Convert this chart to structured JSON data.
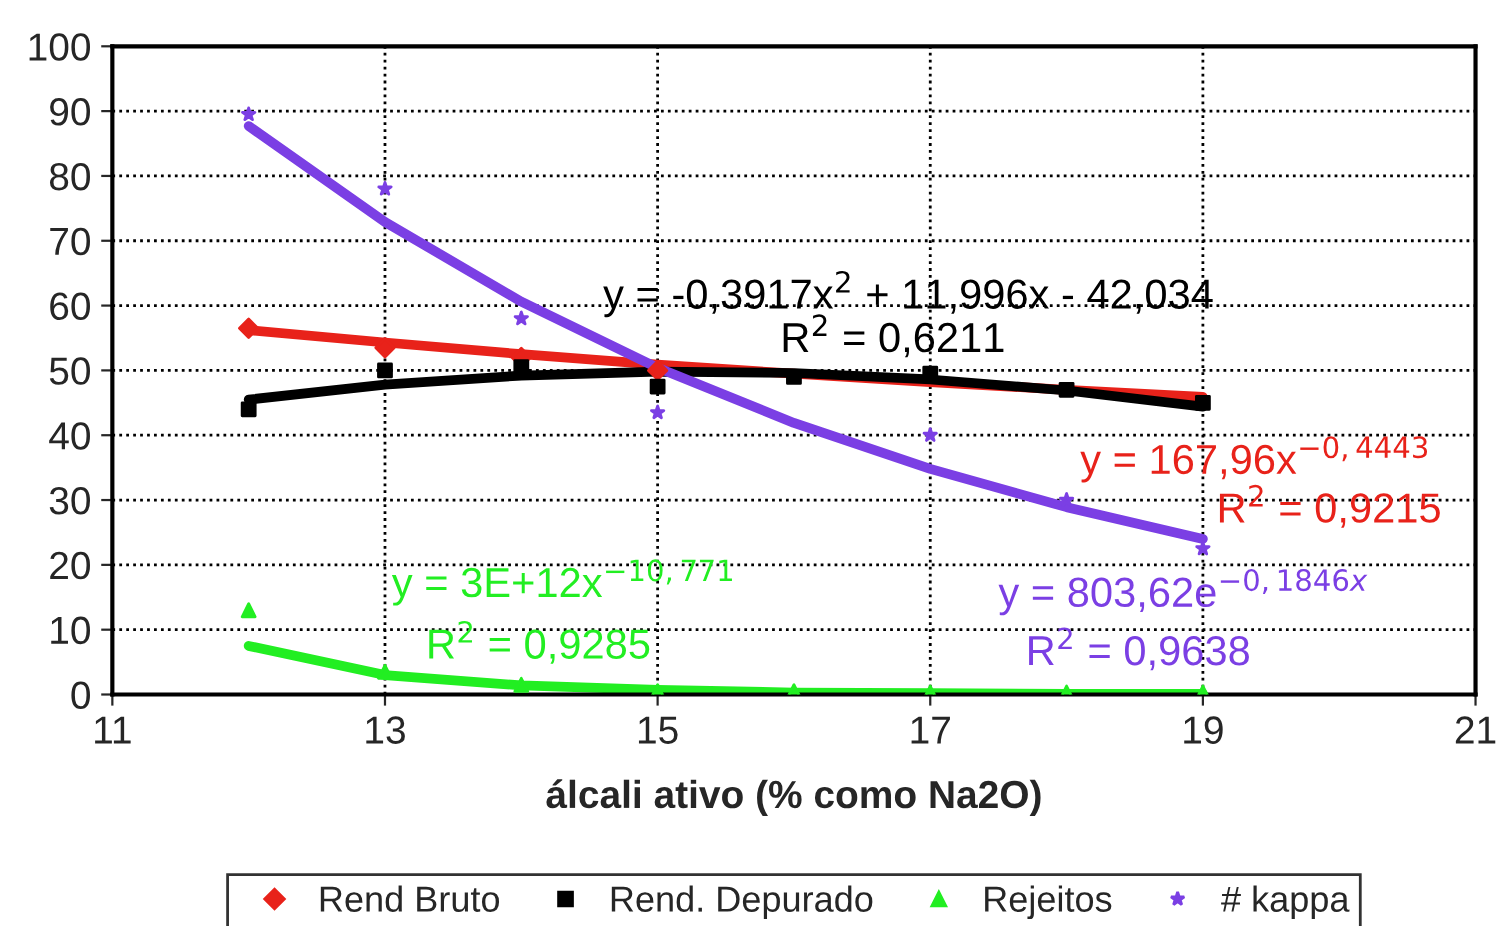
{
  "chart_data": {
    "type": "scatter",
    "xlabel": "álcali ativo (% como Na2O)",
    "x": [
      12,
      13,
      14,
      15,
      16,
      17,
      18,
      19
    ],
    "xlim": [
      11,
      21
    ],
    "xticks": [
      11,
      13,
      15,
      17,
      19,
      21
    ],
    "ylim": [
      0,
      100
    ],
    "yticks": [
      0,
      10,
      20,
      30,
      40,
      50,
      60,
      70,
      80,
      90,
      100
    ],
    "grid": true,
    "legend": "bottom",
    "series": [
      {
        "name": "Rend Bruto",
        "color": "#e8221a",
        "marker": "diamond",
        "values": [
          56.5,
          53.5,
          52,
          50,
          null,
          null,
          null,
          null
        ]
      },
      {
        "name": "Rend. Depurado",
        "color": "#000000",
        "marker": "square",
        "values": [
          44,
          50,
          50.5,
          47.5,
          49,
          49.5,
          47,
          45
        ]
      },
      {
        "name": "Rejeitos",
        "color": "#22ee22",
        "marker": "triangle",
        "values": [
          13,
          3.5,
          1.5,
          0.5,
          0.5,
          0.3,
          0.3,
          0.3
        ]
      },
      {
        "name": "# kappa",
        "color": "#7b3fe4",
        "marker": "star",
        "values": [
          89.5,
          78,
          58,
          43.5,
          null,
          40,
          30,
          22.5
        ]
      },
      {
        "type": "line",
        "color": "#e8221a",
        "x": [
          12,
          13,
          14,
          15,
          16,
          17,
          18,
          19
        ],
        "values": [
          56.2,
          54.3,
          52.5,
          50.9,
          49.5,
          48.2,
          47,
          45.9
        ]
      },
      {
        "type": "line",
        "color": "#000000",
        "x": [
          12,
          13,
          14,
          15,
          16,
          17,
          18,
          19
        ],
        "values": [
          45.5,
          47.8,
          49.2,
          49.8,
          49.6,
          48.6,
          46.9,
          44.4
        ]
      },
      {
        "type": "line",
        "color": "#22ee22",
        "x": [
          12,
          13,
          14,
          15,
          16,
          17,
          18,
          19
        ],
        "values": [
          7.5,
          3,
          1.4,
          0.7,
          0.3,
          0.2,
          0.1,
          0.1
        ]
      },
      {
        "type": "line",
        "color": "#7b3fe4",
        "x": [
          12,
          13,
          14,
          15,
          16,
          17,
          18,
          19
        ],
        "values": [
          87.7,
          72.9,
          60.6,
          50.4,
          41.9,
          34.8,
          28.9,
          24
        ]
      }
    ],
    "annotations": [
      "y = -0,3917x$^{2}$ + 11,996x - 42,034",
      "R$^{2}$ = 0,6211",
      "y = 167,96x$^{−0,4443}$",
      "R$^{2}$ = 0,9215",
      "y = 3E+12x$^{−10,771}$",
      "R$^{2}$ = 0,9285",
      "y = 803,62e$^{−0,1846x}$",
      "R$^{2}$ = 0,9638"
    ]
  }
}
